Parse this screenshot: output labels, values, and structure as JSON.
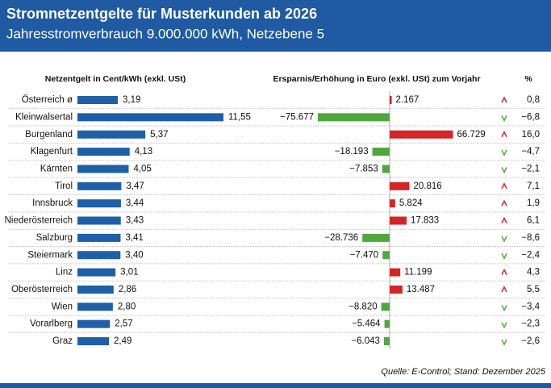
{
  "chart_data": {
    "type": "bar",
    "title": "Stromnetzentgelte für Musterkunden ab 2026",
    "subtitle": "Jahresstromverbrauch 9.000.000 kWh, Netzebene 5",
    "source": "Quelle: E-Control; Stand: Dezember 2025",
    "categories": [
      "Österreich ø",
      "Kleinwalsertal",
      "Burgenland",
      "Klagenfurt",
      "Kärnten",
      "Tirol",
      "Innsbruck",
      "Niederösterreich",
      "Salzburg",
      "Steiermark",
      "Linz",
      "Oberösterreich",
      "Wien",
      "Vorarlberg",
      "Graz"
    ],
    "series": [
      {
        "name": "Netzentgelt in Cent/kWh (exkl. USt)",
        "color": "#1f5fa8",
        "values": [
          3.19,
          11.55,
          5.37,
          4.13,
          4.05,
          3.47,
          3.44,
          3.43,
          3.41,
          3.4,
          3.01,
          2.86,
          2.8,
          2.57,
          2.49
        ],
        "value_labels": [
          "3,19",
          "11,55",
          "5,37",
          "4,13",
          "4,05",
          "3,47",
          "3,44",
          "3,43",
          "3,41",
          "3,40",
          "3,01",
          "2,86",
          "2,80",
          "2,57",
          "2,49"
        ]
      },
      {
        "name": "Ersparnis/Erhöhung in Euro (exkl. USt) zum Vorjahr",
        "color_positive": "#d42424",
        "color_negative": "#4fa83d",
        "values": [
          2167,
          -75677,
          66729,
          -18193,
          -7853,
          20816,
          5824,
          17833,
          -28736,
          -7470,
          11199,
          13487,
          -8820,
          -5464,
          -6043
        ],
        "value_labels": [
          "2.167",
          "−75.677",
          "66.729",
          "−18.193",
          "−7.853",
          "20.816",
          "5.824",
          "17.833",
          "−28.736",
          "−7.470",
          "11.199",
          "13.487",
          "−8.820",
          "−5.464",
          "−6.043"
        ]
      },
      {
        "name": "%",
        "color_positive": "#d42424",
        "color_negative": "#4fa83d",
        "values": [
          0.8,
          -6.8,
          16.0,
          -4.7,
          -2.1,
          7.1,
          1.9,
          6.1,
          -8.6,
          -2.4,
          4.3,
          5.5,
          -3.4,
          -2.3,
          -2.6
        ],
        "value_labels": [
          "0,8",
          "−6,8",
          "16,0",
          "−4,7",
          "−2,1",
          "7,1",
          "1,9",
          "6,1",
          "−8,6",
          "−2,4",
          "4,3",
          "5,5",
          "−3,4",
          "−2,3",
          "−2,6"
        ]
      }
    ]
  }
}
